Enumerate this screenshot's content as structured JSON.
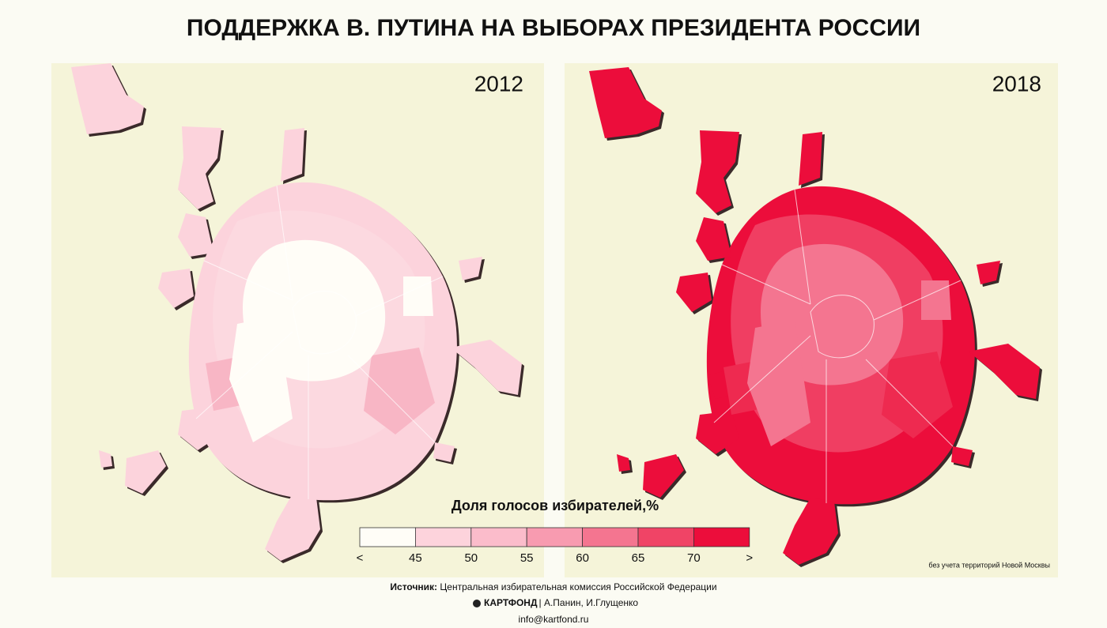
{
  "title": "ПОДДЕРЖКА В. ПУТИНА НА ВЫБОРАХ ПРЕЗИДЕНТА РОССИИ",
  "panels": [
    {
      "year": "2012"
    },
    {
      "year": "2018"
    }
  ],
  "legend": {
    "title": "Доля голосов избирателей,%",
    "labels": [
      "<",
      "45",
      "50",
      "55",
      "60",
      "65",
      "70",
      ">"
    ],
    "colors": [
      "#fffdf7",
      "#fdd3dc",
      "#fbbccb",
      "#f89bb0",
      "#f47590",
      "#f04466",
      "#ec0d3b"
    ]
  },
  "note": "без учета территорий Новой Москвы",
  "source": {
    "label": "Источник:",
    "text": "Центральная избирательная комиссия Российской Федерации"
  },
  "credits": {
    "brand": "КАРТФОНД",
    "authors": "| А.Панин, И.Глущенко"
  },
  "email": "info@kartfond.ru"
}
